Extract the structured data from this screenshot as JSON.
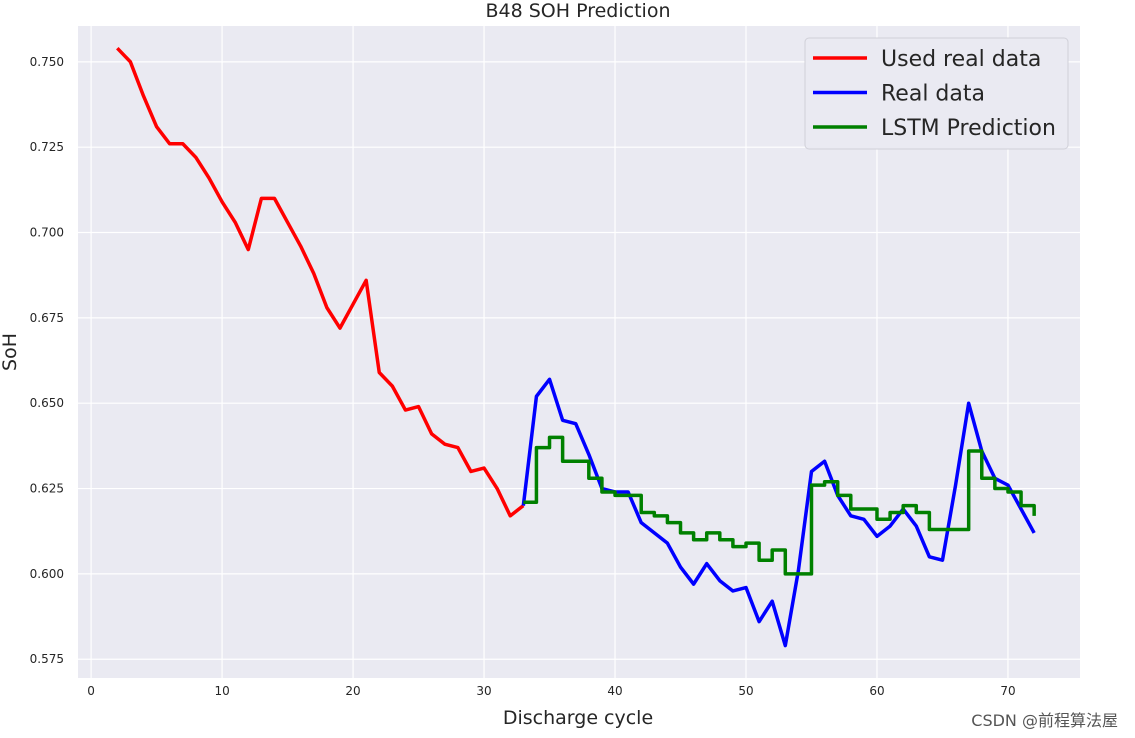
{
  "chart_data": {
    "type": "line",
    "title": "B48 SOH Prediction",
    "xlabel": "Discharge cycle",
    "ylabel": "SoH",
    "xlim": [
      -1,
      75.5
    ],
    "ylim": [
      0.5695,
      0.7605
    ],
    "xticks": [
      0,
      10,
      20,
      30,
      40,
      50,
      60,
      70
    ],
    "xtick_labels": [
      "0",
      "10",
      "20",
      "30",
      "40",
      "50",
      "60",
      "70"
    ],
    "yticks": [
      0.575,
      0.6,
      0.625,
      0.65,
      0.675,
      0.7,
      0.725,
      0.75
    ],
    "ytick_labels": [
      "0.575",
      "0.600",
      "0.625",
      "0.650",
      "0.675",
      "0.700",
      "0.725",
      "0.750"
    ],
    "grid": true,
    "background": "#eaeaf2",
    "legend_position": "top-right",
    "series": [
      {
        "name": "Used real data",
        "color": "#ff0000",
        "step": false,
        "x": [
          2,
          3,
          4,
          5,
          6,
          7,
          8,
          9,
          10,
          11,
          12,
          13,
          14,
          15,
          16,
          17,
          18,
          19,
          20,
          21,
          22,
          23,
          24,
          25,
          26,
          27,
          28,
          29,
          30,
          31,
          32,
          33
        ],
        "y": [
          0.754,
          0.75,
          0.74,
          0.731,
          0.726,
          0.726,
          0.722,
          0.716,
          0.709,
          0.703,
          0.695,
          0.71,
          0.71,
          0.703,
          0.696,
          0.688,
          0.678,
          0.672,
          0.679,
          0.686,
          0.659,
          0.655,
          0.648,
          0.649,
          0.641,
          0.638,
          0.637,
          0.63,
          0.631,
          0.625,
          0.617,
          0.62
        ]
      },
      {
        "name": "Real data",
        "color": "#0000ff",
        "step": false,
        "x": [
          33,
          34,
          35,
          36,
          37,
          38,
          39,
          40,
          41,
          42,
          43,
          44,
          45,
          46,
          47,
          48,
          49,
          50,
          51,
          52,
          53,
          54,
          55,
          56,
          57,
          58,
          59,
          60,
          61,
          62,
          63,
          64,
          65,
          66,
          67,
          68,
          69,
          70,
          71,
          72
        ],
        "y": [
          0.62,
          0.652,
          0.657,
          0.645,
          0.644,
          0.635,
          0.625,
          0.624,
          0.624,
          0.615,
          0.612,
          0.609,
          0.602,
          0.597,
          0.603,
          0.598,
          0.595,
          0.596,
          0.586,
          0.592,
          0.579,
          0.601,
          0.63,
          0.633,
          0.623,
          0.617,
          0.616,
          0.611,
          0.614,
          0.619,
          0.614,
          0.605,
          0.604,
          0.626,
          0.65,
          0.636,
          0.628,
          0.626,
          0.619,
          0.612
        ]
      },
      {
        "name": "LSTM Prediction",
        "color": "#008000",
        "step": true,
        "x": [
          33,
          34,
          35,
          36,
          37,
          38,
          39,
          40,
          41,
          42,
          43,
          44,
          45,
          46,
          47,
          48,
          49,
          50,
          51,
          52,
          53,
          54,
          55,
          56,
          57,
          58,
          59,
          60,
          61,
          62,
          63,
          64,
          65,
          66,
          67,
          68,
          69,
          70,
          71,
          72
        ],
        "y": [
          0.621,
          0.637,
          0.64,
          0.633,
          0.633,
          0.628,
          0.624,
          0.623,
          0.623,
          0.618,
          0.617,
          0.615,
          0.612,
          0.61,
          0.612,
          0.61,
          0.608,
          0.609,
          0.604,
          0.607,
          0.6,
          0.6,
          0.626,
          0.627,
          0.623,
          0.619,
          0.619,
          0.616,
          0.618,
          0.62,
          0.618,
          0.613,
          0.613,
          0.613,
          0.636,
          0.628,
          0.625,
          0.624,
          0.62,
          0.617
        ]
      }
    ]
  },
  "watermark": "CSDN @前程算法屋"
}
